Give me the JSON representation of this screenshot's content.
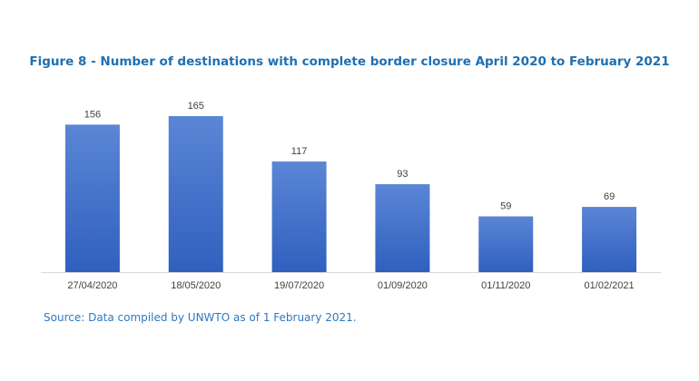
{
  "chart_data": {
    "type": "bar",
    "title": "Figure 8 - Number of destinations with complete border closure April 2020 to February 2021",
    "categories": [
      "27/04/2020",
      "18/05/2020",
      "19/07/2020",
      "01/09/2020",
      "01/11/2020",
      "01/02/2021"
    ],
    "values": [
      156,
      165,
      117,
      93,
      59,
      69
    ],
    "data_labels": [
      "156",
      "165",
      "117",
      "93",
      "59",
      "69"
    ],
    "xlabel": "",
    "ylabel": "",
    "ylim": [
      0,
      165
    ],
    "grid": false,
    "legend": "none",
    "bar_color_top": "#5b86d6",
    "bar_color_bottom": "#3060be",
    "axis_color": "#d9d9d9"
  },
  "footer": {
    "source": "Source: Data compiled by UNWTO as of 1 February 2021."
  }
}
